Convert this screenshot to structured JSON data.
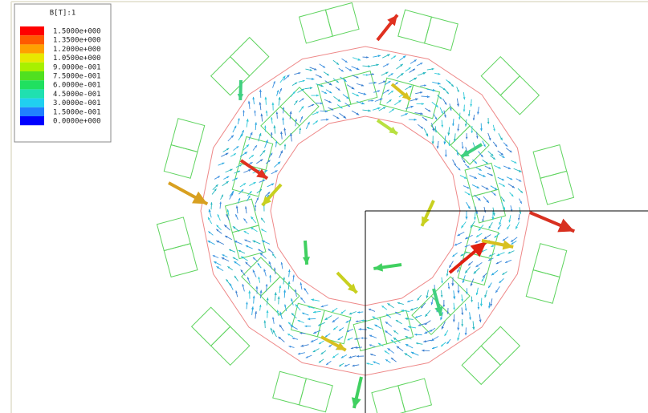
{
  "legend": {
    "title": "B[T]:1",
    "entries": [
      {
        "label": "1.5000e+000",
        "color": "#ff0000"
      },
      {
        "label": "1.3500e+000",
        "color": "#ff5a00"
      },
      {
        "label": "1.2000e+000",
        "color": "#ffa000"
      },
      {
        "label": "1.0500e+000",
        "color": "#e8e800"
      },
      {
        "label": "9.0000e-001",
        "color": "#a8f000"
      },
      {
        "label": "7.5000e-001",
        "color": "#50e020"
      },
      {
        "label": "6.0000e-001",
        "color": "#20e060"
      },
      {
        "label": "4.5000e-001",
        "color": "#20e0b0"
      },
      {
        "label": "3.0000e-001",
        "color": "#20d0f0"
      },
      {
        "label": "1.5000e-001",
        "color": "#2080ff"
      },
      {
        "label": "0.0000e+000",
        "color": "#0000ff"
      }
    ]
  }
}
